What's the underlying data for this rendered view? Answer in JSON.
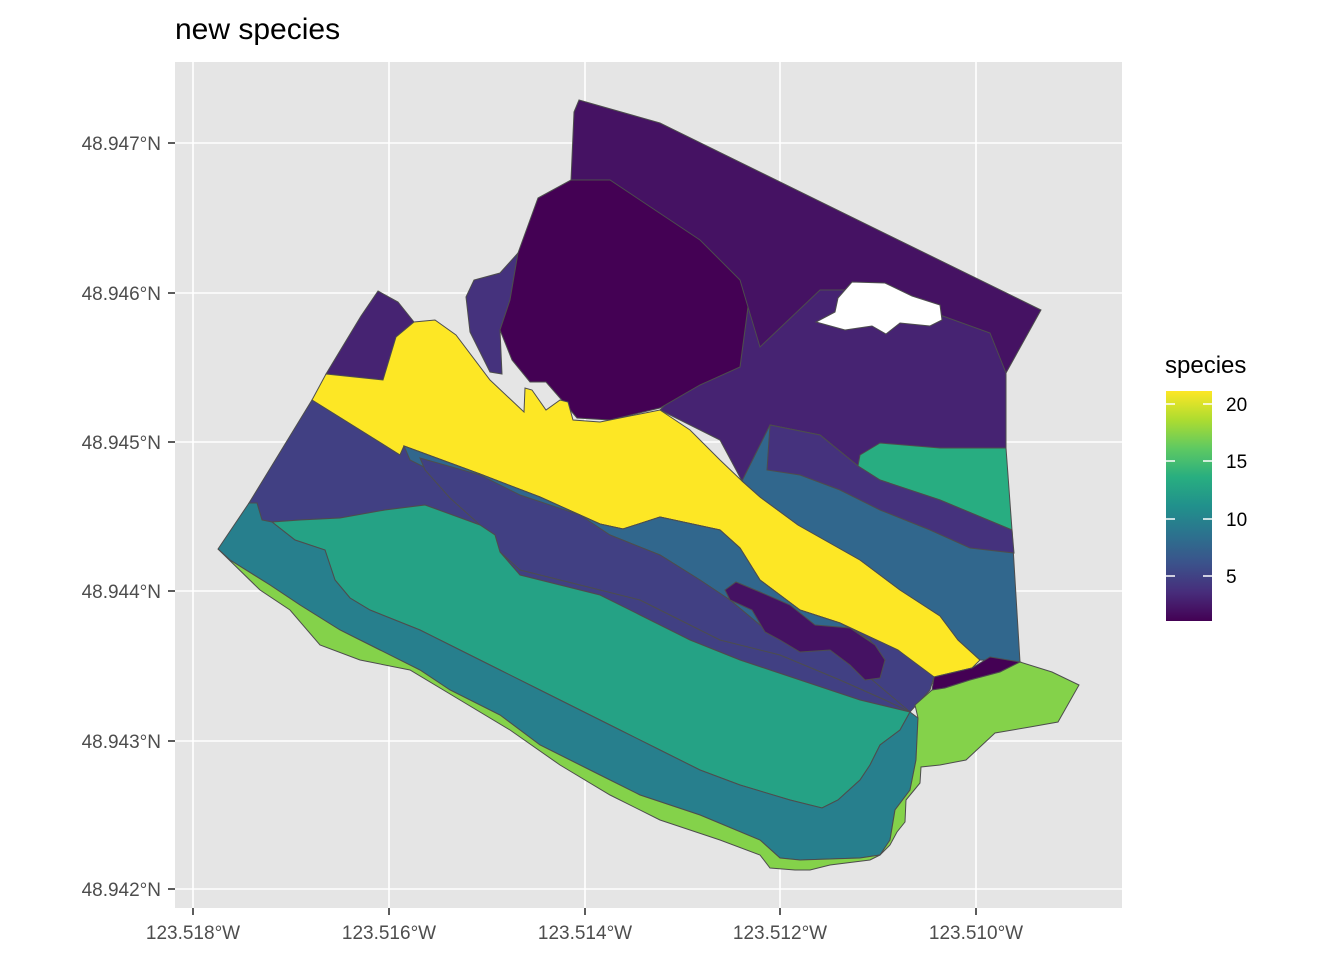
{
  "title": "new species",
  "map": {
    "x_axis": {
      "ticks": [
        "123.518°W",
        "123.516°W",
        "123.514°W",
        "123.512°W",
        "123.510°W"
      ]
    },
    "y_axis": {
      "ticks": [
        "48.947°N",
        "48.946°N",
        "48.945°N",
        "48.944°N",
        "48.943°N",
        "48.942°N"
      ]
    },
    "panel_background": "#e5e5e5",
    "gridline_color": "#ffffff"
  },
  "legend": {
    "title": "species",
    "labels": [
      "20",
      "15",
      "10",
      "5"
    ],
    "range": [
      1,
      22
    ],
    "palette": "viridis"
  },
  "regions": [
    {
      "id": "outer-north-band",
      "species": 2
    },
    {
      "id": "east-upper",
      "species": 3
    },
    {
      "id": "northwest-lobe",
      "species": 3
    },
    {
      "id": "west-lobe",
      "species": 4
    },
    {
      "id": "central-block",
      "species": 1
    },
    {
      "id": "yellow-band",
      "species": 22
    },
    {
      "id": "band-5-west",
      "species": 5
    },
    {
      "id": "band-8",
      "species": 8
    },
    {
      "id": "band-5-south",
      "species": 5
    },
    {
      "id": "band-13",
      "species": 13
    },
    {
      "id": "band-10",
      "species": 10
    },
    {
      "id": "east-green",
      "species": 14
    },
    {
      "id": "east-mid",
      "species": 4
    },
    {
      "id": "small-dark-island",
      "species": 2
    },
    {
      "id": "southeast-tip",
      "species": 1
    },
    {
      "id": "southeast-lobe",
      "species": 18
    },
    {
      "id": "south-fringe",
      "species": 18
    }
  ]
}
